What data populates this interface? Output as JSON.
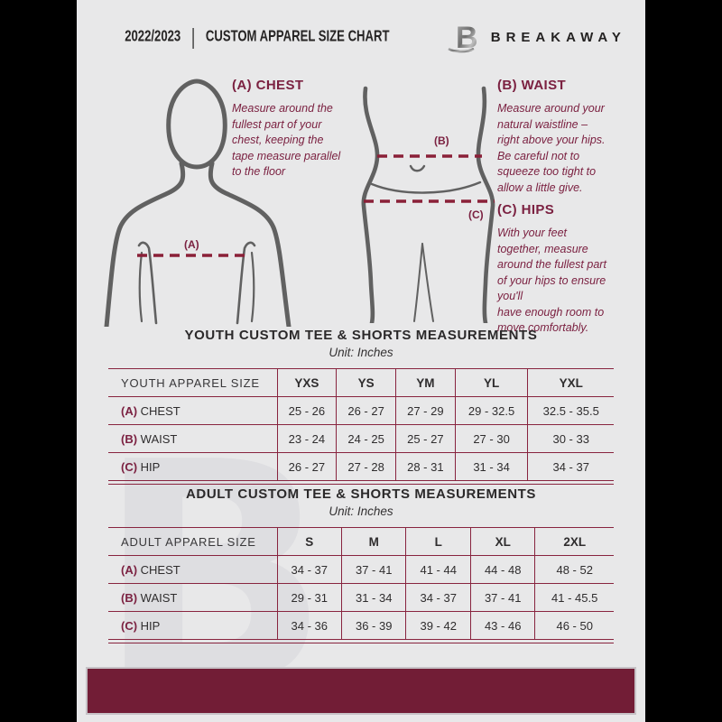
{
  "header": {
    "year": "2022/2023",
    "separator": "|",
    "title": "CUSTOM APPAREL SIZE CHART",
    "brand": "BREAKAWAY",
    "logo_letter": "B"
  },
  "guide": {
    "chest": {
      "heading": "(A) CHEST",
      "body": "Measure around the\nfullest part of your\nchest, keeping the\ntape measure parallel\nto the floor",
      "marker": "(A)"
    },
    "waist": {
      "heading": "(B) WAIST",
      "body": "Measure around your\nnatural waistline –\nright above your hips.\nBe careful not to\nsqueeze too tight to\nallow a little give.",
      "marker": "(B)"
    },
    "hips": {
      "heading": "(C) HIPS",
      "body": "With your feet\ntogether, measure\naround the fullest part\nof your hips to ensure\nyou'll\nhave enough room to\nmove comfortably.",
      "marker": "(C)"
    }
  },
  "youth": {
    "title": "YOUTH CUSTOM TEE & SHORTS MEASUREMENTS",
    "unit": "Unit: Inches",
    "table": {
      "columns": [
        "YOUTH APPAREL SIZE",
        "YXS",
        "YS",
        "YM",
        "YL",
        "YXL"
      ],
      "rows": [
        {
          "prefix": "(A)",
          "label": "CHEST",
          "values": [
            "25 - 26",
            "26 - 27",
            "27 - 29",
            "29 - 32.5",
            "32.5 - 35.5"
          ]
        },
        {
          "prefix": "(B)",
          "label": "WAIST",
          "values": [
            "23 - 24",
            "24 - 25",
            "25 - 27",
            "27 - 30",
            "30 - 33"
          ]
        },
        {
          "prefix": "(C)",
          "label": "HIP",
          "values": [
            "26 - 27",
            "27 - 28",
            "28 - 31",
            "31 - 34",
            "34 - 37"
          ]
        }
      ]
    }
  },
  "adult": {
    "title": "ADULT CUSTOM TEE & SHORTS MEASUREMENTS",
    "unit": "Unit: Inches",
    "table": {
      "columns": [
        "ADULT APPAREL SIZE",
        "S",
        "M",
        "L",
        "XL",
        "2XL"
      ],
      "rows": [
        {
          "prefix": "(A)",
          "label": "CHEST",
          "values": [
            "34 - 37",
            "37 - 41",
            "41 - 44",
            "44 - 48",
            "48 - 52"
          ]
        },
        {
          "prefix": "(B)",
          "label": "WAIST",
          "values": [
            "29 - 31",
            "31 - 34",
            "34 - 37",
            "37 - 41",
            "41 - 45.5"
          ]
        },
        {
          "prefix": "(C)",
          "label": "HIP",
          "values": [
            "34 - 36",
            "36 - 39",
            "39 - 42",
            "43 - 46",
            "46 - 50"
          ]
        }
      ]
    }
  },
  "watermark": "B",
  "colors": {
    "maroon_text": "#7b2141",
    "maroon_bar": "#721d36",
    "maroon_border": "#88243f",
    "dark_text": "#2f2d2e",
    "page_bg": "#e8e8e9"
  }
}
